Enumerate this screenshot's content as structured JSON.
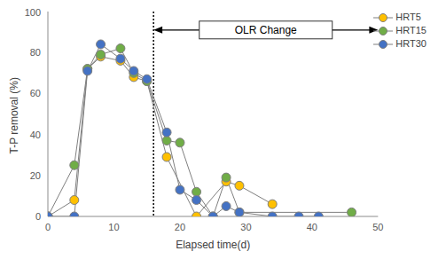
{
  "chart_data": {
    "type": "line",
    "x_label": "Elapsed time(d)",
    "y_label": "T-P removal (%)",
    "xlim": [
      0,
      50
    ],
    "xticks": [
      0,
      10,
      20,
      30,
      40,
      50
    ],
    "ylim": [
      0,
      100
    ],
    "yticks": [
      0,
      20,
      40,
      60,
      80,
      100
    ],
    "grid": false,
    "legend": "top-right",
    "marker": "circle",
    "annotations": [
      {
        "text": "OLR Change",
        "x": 16
      }
    ],
    "series": [
      {
        "name": "HRT5",
        "color": "#FFC000",
        "x": [
          0,
          4,
          6,
          8,
          11,
          13,
          15,
          18,
          22.5,
          27,
          29,
          34
        ],
        "values": [
          0,
          8,
          72,
          78,
          76,
          68,
          66,
          29,
          0,
          17,
          15,
          6
        ]
      },
      {
        "name": "HRT15",
        "color": "#70AD47",
        "x": [
          0,
          4,
          6,
          8,
          11,
          13,
          15,
          18,
          20,
          22.5,
          25,
          27,
          29,
          46
        ],
        "values": [
          0,
          25,
          72,
          79,
          82,
          70,
          66,
          37,
          36,
          12,
          0,
          19,
          2,
          2
        ]
      },
      {
        "name": "HRT30",
        "color": "#4472C4",
        "x": [
          0,
          4,
          6,
          8,
          11,
          13,
          15,
          18,
          20,
          22.5,
          25,
          27,
          29,
          34,
          38,
          41
        ],
        "values": [
          0,
          0,
          71,
          84,
          77,
          71,
          67,
          41,
          13,
          8,
          0,
          5,
          2,
          0,
          0,
          0
        ]
      }
    ]
  }
}
